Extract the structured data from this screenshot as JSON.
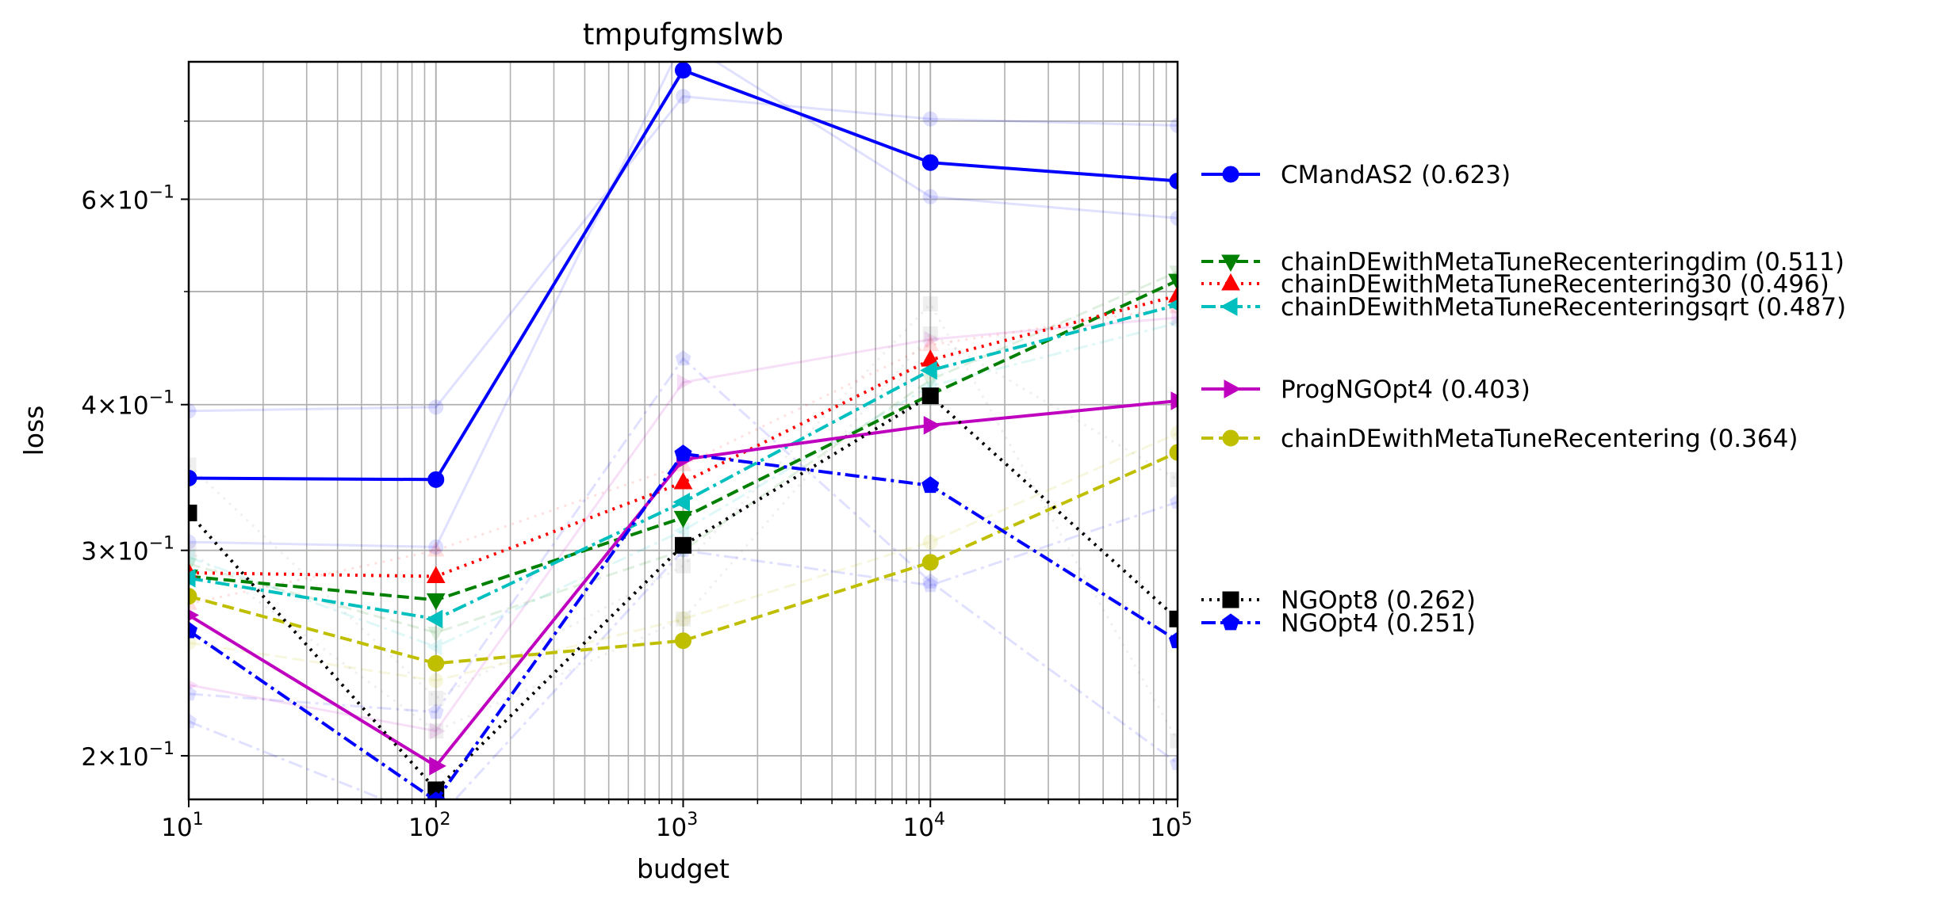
{
  "chart_data": {
    "type": "line",
    "title": "tmpufgmslwb",
    "xlabel": "budget",
    "ylabel": "loss",
    "xscale": "log",
    "yscale": "log",
    "xlim": [
      10,
      100000
    ],
    "ylim": [
      0.1835,
      0.787
    ],
    "grid": true,
    "legend_position": "right, outside plot",
    "x_ticks": [
      {
        "value": 10,
        "base": "10",
        "exp": "1"
      },
      {
        "value": 100,
        "base": "10",
        "exp": "2"
      },
      {
        "value": 1000,
        "base": "10",
        "exp": "3"
      },
      {
        "value": 10000,
        "base": "10",
        "exp": "4"
      },
      {
        "value": 100000,
        "base": "10",
        "exp": "5"
      }
    ],
    "y_ticks": [
      {
        "value": 0.2,
        "mant": "2",
        "base": "10",
        "exp": "−1"
      },
      {
        "value": 0.3,
        "mant": "3",
        "base": "10",
        "exp": "−1"
      },
      {
        "value": 0.4,
        "mant": "4",
        "base": "10",
        "exp": "−1"
      },
      {
        "value": 0.6,
        "mant": "6",
        "base": "10",
        "exp": "−1"
      }
    ],
    "series": [
      {
        "name": "CMandAS2 (0.623)",
        "color": "#0000ff",
        "dash": "solid",
        "marker": "circle",
        "x": [
          10,
          100,
          1000,
          10000,
          100000
        ],
        "y": [
          0.346,
          0.345,
          0.774,
          0.645,
          0.622
        ]
      },
      {
        "name": "chainDEwithMetaTuneRecenteringdim (0.511)",
        "color": "#008000",
        "dash": "dashed",
        "marker": "triangle-down",
        "x": [
          10,
          100,
          1000,
          10000,
          100000
        ],
        "y": [
          0.285,
          0.272,
          0.32,
          0.408,
          0.511
        ]
      },
      {
        "name": "chainDEwithMetaTuneRecentering30 (0.496)",
        "color": "#ff0000",
        "dash": "dotted",
        "marker": "triangle-up",
        "x": [
          10,
          100,
          1000,
          10000,
          100000
        ],
        "y": [
          0.287,
          0.285,
          0.343,
          0.437,
          0.496
        ]
      },
      {
        "name": "chainDEwithMetaTuneRecenteringsqrt (0.487)",
        "color": "#00bfbf",
        "dash": "dashdot",
        "marker": "triangle-left",
        "x": [
          10,
          100,
          1000,
          10000,
          100000
        ],
        "y": [
          0.284,
          0.262,
          0.33,
          0.428,
          0.487
        ]
      },
      {
        "name": "ProgNGOpt4 (0.403)",
        "color": "#bf00bf",
        "dash": "solid",
        "marker": "triangle-right",
        "x": [
          10,
          100,
          1000,
          10000,
          100000
        ],
        "y": [
          0.264,
          0.196,
          0.359,
          0.384,
          0.403
        ]
      },
      {
        "name": "chainDEwithMetaTuneRecentering (0.364)",
        "color": "#bfbf00",
        "dash": "dashed",
        "marker": "circle",
        "x": [
          10,
          100,
          1000,
          10000,
          100000
        ],
        "y": [
          0.274,
          0.24,
          0.251,
          0.293,
          0.364
        ]
      },
      {
        "name": "NGOpt8 (0.262)",
        "color": "#000000",
        "dash": "dotted",
        "marker": "square",
        "x": [
          10,
          100,
          1000,
          10000,
          100000
        ],
        "y": [
          0.323,
          0.187,
          0.303,
          0.407,
          0.262
        ]
      },
      {
        "name": "NGOpt4 (0.251)",
        "color": "#0000ff",
        "dash": "dashdot",
        "marker": "pentagon",
        "x": [
          10,
          100,
          1000,
          10000,
          100000
        ],
        "y": [
          0.256,
          0.183,
          0.363,
          0.341,
          0.251
        ]
      }
    ],
    "faint_series": [
      {
        "color": "#0000ff",
        "dash": "solid",
        "marker": "circle",
        "x": [
          10,
          100,
          1000,
          10000,
          100000
        ],
        "y": [
          0.395,
          0.398,
          0.735,
          0.703,
          0.694
        ]
      },
      {
        "color": "#0000ff",
        "dash": "solid",
        "marker": "circle",
        "x": [
          10,
          100,
          1000,
          10000,
          100000
        ],
        "y": [
          0.305,
          0.302,
          0.82,
          0.603,
          0.578
        ]
      },
      {
        "color": "#0000ff",
        "dash": "dashdot",
        "marker": "pentagon",
        "x": [
          10,
          100,
          1000,
          10000,
          100000
        ],
        "y": [
          0.226,
          0.218,
          0.438,
          0.282,
          0.197
        ]
      },
      {
        "color": "#bf00bf",
        "dash": "solid",
        "marker": "triangle-right",
        "x": [
          10,
          100,
          1000,
          10000,
          100000
        ],
        "y": [
          0.23,
          0.21,
          0.418,
          0.455,
          0.475
        ]
      },
      {
        "color": "#808080",
        "dash": "dotted",
        "marker": "square",
        "x": [
          10,
          100,
          1000,
          10000,
          100000
        ],
        "y": [
          0.355,
          0.224,
          0.291,
          0.488,
          0.206
        ]
      },
      {
        "color": "#808080",
        "dash": "dotted",
        "marker": "square",
        "x": [
          10,
          100,
          1000,
          10000,
          100000
        ],
        "y": [
          0.3,
          0.21,
          0.262,
          0.46,
          0.345
        ]
      },
      {
        "color": "#bfbf00",
        "dash": "dashed",
        "marker": "circle",
        "x": [
          10,
          100,
          1000,
          10000,
          100000
        ],
        "y": [
          0.25,
          0.232,
          0.262,
          0.305,
          0.378
        ]
      },
      {
        "color": "#008000",
        "dash": "dashed",
        "marker": "triangle-down",
        "x": [
          10,
          100,
          1000,
          10000,
          100000
        ],
        "y": [
          0.292,
          0.255,
          0.3,
          0.42,
          0.52
        ]
      },
      {
        "color": "#ff0000",
        "dash": "dotted",
        "marker": "triangle-up",
        "x": [
          10,
          100,
          1000,
          10000,
          100000
        ],
        "y": [
          0.27,
          0.3,
          0.355,
          0.45,
          0.485
        ]
      },
      {
        "color": "#00bfbf",
        "dash": "dashdot",
        "marker": "triangle-left",
        "x": [
          10,
          100,
          1000,
          10000,
          100000
        ],
        "y": [
          0.296,
          0.248,
          0.312,
          0.415,
          0.47
        ]
      },
      {
        "color": "#0000ff",
        "dash": "dashdot",
        "marker": "pentagon",
        "x": [
          10,
          100,
          1000,
          10000,
          100000
        ],
        "y": [
          0.214,
          0.176,
          0.3,
          0.28,
          0.33
        ]
      }
    ]
  }
}
